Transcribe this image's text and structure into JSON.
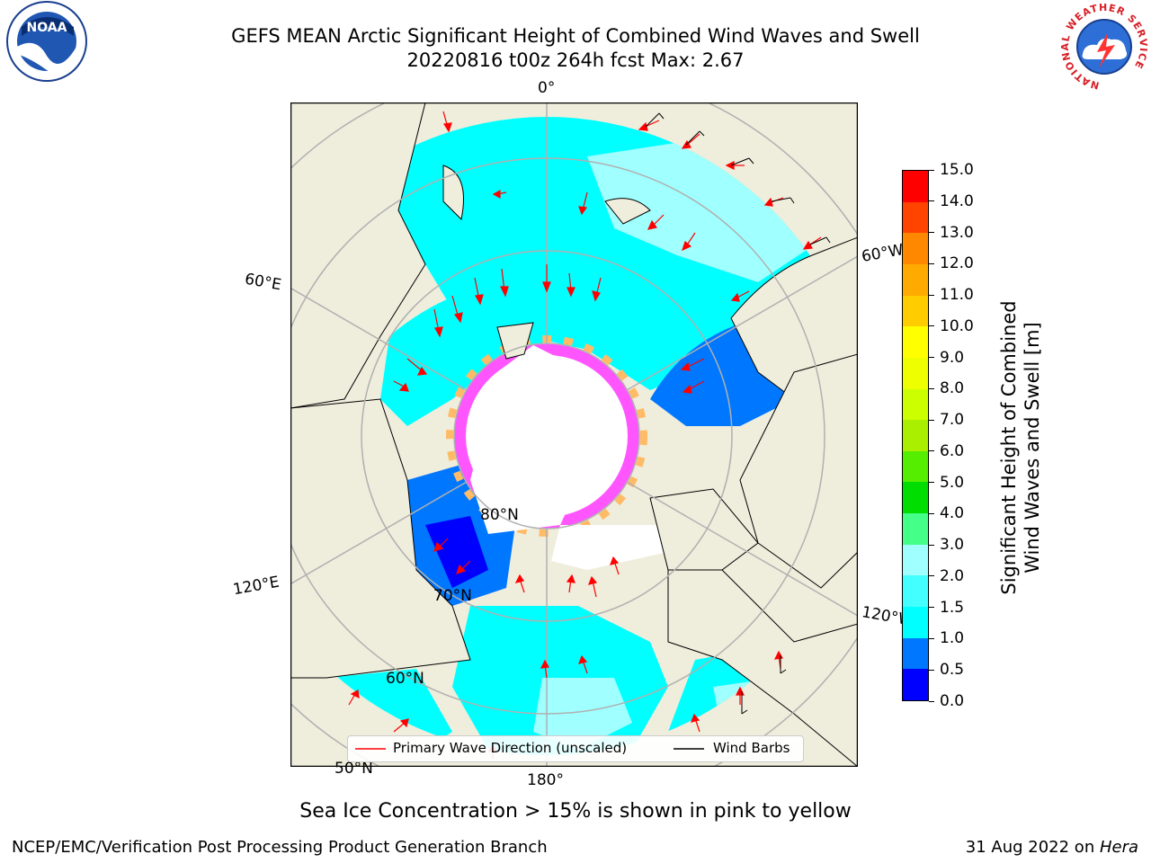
{
  "header": {
    "title_line1": "GEFS MEAN Arctic Significant Height of Combined Wind Waves and Swell",
    "title_line2": "20220816 t00z 264h fcst   Max: 2.67"
  },
  "logos": {
    "left": "NOAA",
    "right_text": "NATIONAL WEATHER SERVICE"
  },
  "map": {
    "lon_labels": {
      "top": "0°",
      "upper_right": "60°W",
      "upper_left": "60°E",
      "lower_left": "120°E",
      "lower_right": "120°W",
      "bottom": "180°"
    },
    "lat_labels": {
      "l80": "80°N",
      "l70": "70°N",
      "l60": "60°N",
      "l50": "50°N"
    },
    "colors": {
      "land": "#efeddc",
      "ocean_low": "#00ffff",
      "ice": "#ff33ff",
      "grid": "#b0b0b0"
    }
  },
  "legend": {
    "primary_wave_label": "Primary Wave Direction (unscaled)",
    "wind_barbs_label": "Wind Barbs",
    "primary_color": "#ff0000",
    "barb_color": "#000000"
  },
  "colorbar": {
    "label": "Significant Height of Combined Wind Waves and Swell [m]",
    "label_line1": "Significant Height of Combined",
    "label_line2": "Wind Waves and Swell [m]",
    "ticks": [
      "15.0",
      "14.0",
      "13.0",
      "12.0",
      "11.0",
      "10.0",
      "9.0",
      "8.0",
      "7.0",
      "6.0",
      "5.0",
      "4.0",
      "3.0",
      "2.0",
      "1.5",
      "1.0",
      "0.5",
      "0.0"
    ],
    "bins": [
      {
        "from": "0.0",
        "to": "0.5",
        "color": "#0000ff"
      },
      {
        "from": "0.5",
        "to": "1.0",
        "color": "#0077ff"
      },
      {
        "from": "1.0",
        "to": "1.5",
        "color": "#00ffff"
      },
      {
        "from": "1.5",
        "to": "2.0",
        "color": "#44ffff"
      },
      {
        "from": "2.0",
        "to": "3.0",
        "color": "#a0ffff"
      },
      {
        "from": "3.0",
        "to": "4.0",
        "color": "#44ff88"
      },
      {
        "from": "4.0",
        "to": "5.0",
        "color": "#00dd00"
      },
      {
        "from": "5.0",
        "to": "6.0",
        "color": "#55ee00"
      },
      {
        "from": "6.0",
        "to": "7.0",
        "color": "#aaee00"
      },
      {
        "from": "7.0",
        "to": "8.0",
        "color": "#ccff00"
      },
      {
        "from": "8.0",
        "to": "9.0",
        "color": "#eeff00"
      },
      {
        "from": "9.0",
        "to": "10.0",
        "color": "#ffff00"
      },
      {
        "from": "10.0",
        "to": "11.0",
        "color": "#ffcc00"
      },
      {
        "from": "11.0",
        "to": "12.0",
        "color": "#ffaa00"
      },
      {
        "from": "12.0",
        "to": "13.0",
        "color": "#ff8800"
      },
      {
        "from": "13.0",
        "to": "14.0",
        "color": "#ff4400"
      },
      {
        "from": "14.0",
        "to": "15.0",
        "color": "#ff0000"
      }
    ]
  },
  "notes": {
    "sea_ice": "Sea Ice Concentration > 15% is shown in pink to yellow",
    "footer_left": "NCEP/EMC/Verification Post Processing Product Generation Branch",
    "footer_right_date": "31 Aug 2022 on ",
    "footer_right_host": "Hera"
  }
}
